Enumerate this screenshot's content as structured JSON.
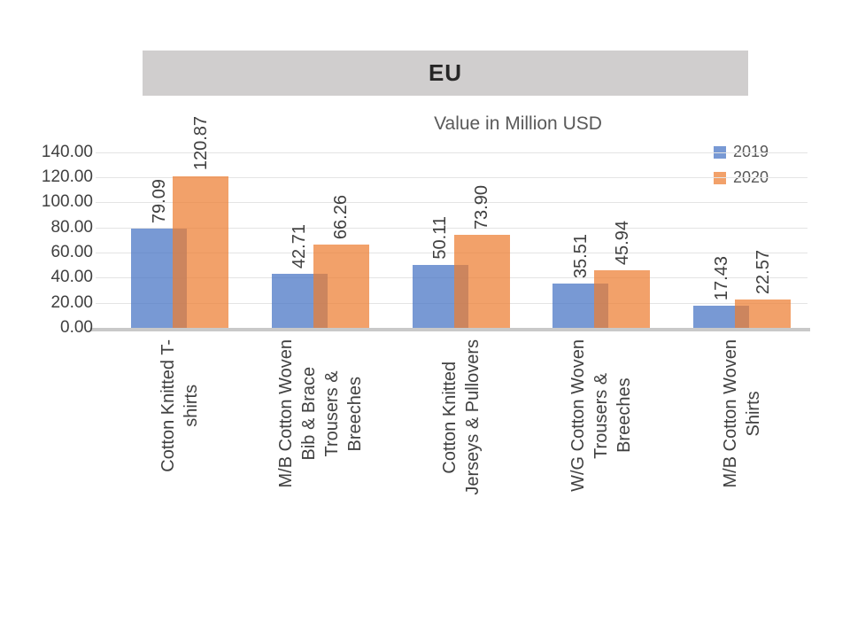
{
  "slide": {
    "background_color": "#ffffff",
    "banner_color": "#d0cece"
  },
  "chart_data": {
    "type": "bar",
    "title": "EU",
    "subtitle": "Value in Million USD",
    "categories": [
      "Cotton Knitted T-\nshirts",
      "M/B Cotton Woven\nBib & Brace\nTrousers &\nBreeches",
      "Cotton Knitted\nJerseys & Pullovers",
      "W/G Cotton Woven\nTrousers &\nBreeches",
      "M/B Cotton Woven\nShirts"
    ],
    "series": [
      {
        "name": "2019",
        "color": "#4472C4",
        "values": [
          79.09,
          42.71,
          50.11,
          35.51,
          17.43
        ]
      },
      {
        "name": "2020",
        "color": "#ED7D31",
        "values": [
          120.87,
          66.26,
          73.9,
          45.94,
          22.57
        ]
      }
    ],
    "value_labels": [
      [
        "79.09",
        "42.71",
        "50.11",
        "35.51",
        "17.43"
      ],
      [
        "120.87",
        "66.26",
        "73.90",
        "45.94",
        "22.57"
      ]
    ],
    "ylim": [
      0,
      140
    ],
    "ytick_step": 20,
    "ytick_labels": [
      "0.00",
      "20.00",
      "40.00",
      "60.00",
      "80.00",
      "100.00",
      "120.00",
      "140.00"
    ],
    "grid": true,
    "legend_position": "top-right",
    "bar_style": {
      "overlapped": true,
      "fill_opacity": 0.72,
      "gridline_color": "#e4e4e4",
      "axis_line_color": "#c9c9c9",
      "label_color": "#404040"
    }
  }
}
